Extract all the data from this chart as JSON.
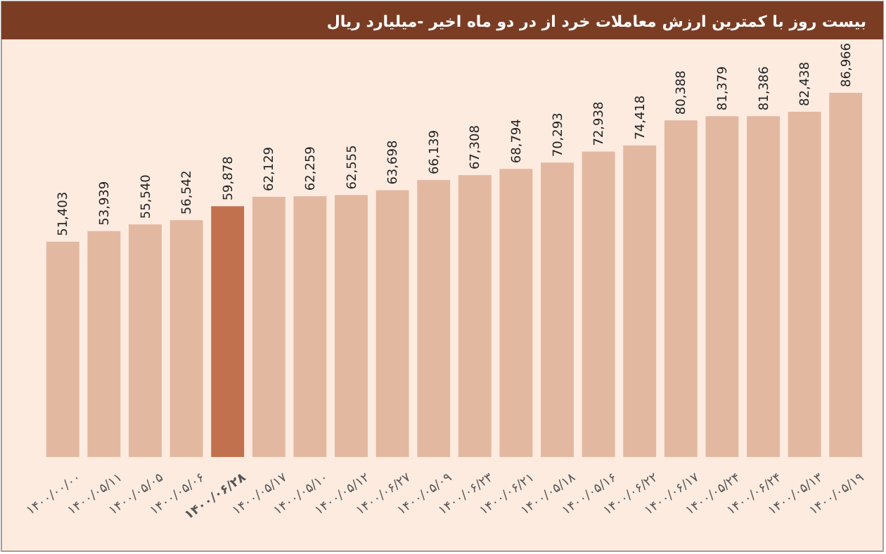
{
  "chart_data": {
    "type": "bar",
    "title": "بیست روز با کمترین ارزش معاملات خرد از در دو ماه اخیر -میلیارد ریال",
    "categories": [
      "۱۴۰۰/۰۰/۰۰",
      "۱۴۰۰/۰۵/۱۱",
      "۱۴۰۰/۰۵/۰۵",
      "۱۴۰۰/۰۵/۰۶",
      "۱۴۰۰/۰۶/۲۸",
      "۱۴۰۰/۰۵/۱۷",
      "۱۴۰۰/۰۵/۱۰",
      "۱۴۰۰/۰۵/۱۲",
      "۱۴۰۰/۰۶/۲۷",
      "۱۴۰۰/۰۵/۰۹",
      "۱۴۰۰/۰۶/۲۳",
      "۱۴۰۰/۰۶/۲۱",
      "۱۴۰۰/۰۵/۱۸",
      "۱۴۰۰/۰۵/۱۶",
      "۱۴۰۰/۰۶/۲۲",
      "۱۴۰۰/۰۶/۱۷",
      "۱۴۰۰/۰۵/۲۴",
      "۱۴۰۰/۰۶/۲۴",
      "۱۴۰۰/۰۵/۱۳",
      "۱۴۰۰/۰۵/۱۹"
    ],
    "values": [
      51403,
      53939,
      55540,
      56542,
      59878,
      62129,
      62259,
      62555,
      63698,
      66139,
      67308,
      68794,
      70293,
      72938,
      74418,
      80388,
      81379,
      81386,
      82438,
      86966
    ],
    "value_labels": [
      "51,403",
      "53,939",
      "55,540",
      "56,542",
      "59,878",
      "62,129",
      "62,259",
      "62,555",
      "63,698",
      "66,139",
      "67,308",
      "68,794",
      "70,293",
      "72,938",
      "74,418",
      "80,388",
      "81,379",
      "81,386",
      "82,438",
      "86,966"
    ],
    "colors": [
      "#e3b8a0",
      "#e3b8a0",
      "#e3b8a0",
      "#e3b8a0",
      "#c2714f",
      "#e3b8a0",
      "#e3b8a0",
      "#e3b8a0",
      "#e3b8a0",
      "#e3b8a0",
      "#e3b8a0",
      "#e3b8a0",
      "#e3b8a0",
      "#e3b8a0",
      "#e3b8a0",
      "#e3b8a0",
      "#e3b8a0",
      "#e3b8a0",
      "#e3b8a0",
      "#e3b8a0"
    ],
    "tick_labels": "x"
  }
}
